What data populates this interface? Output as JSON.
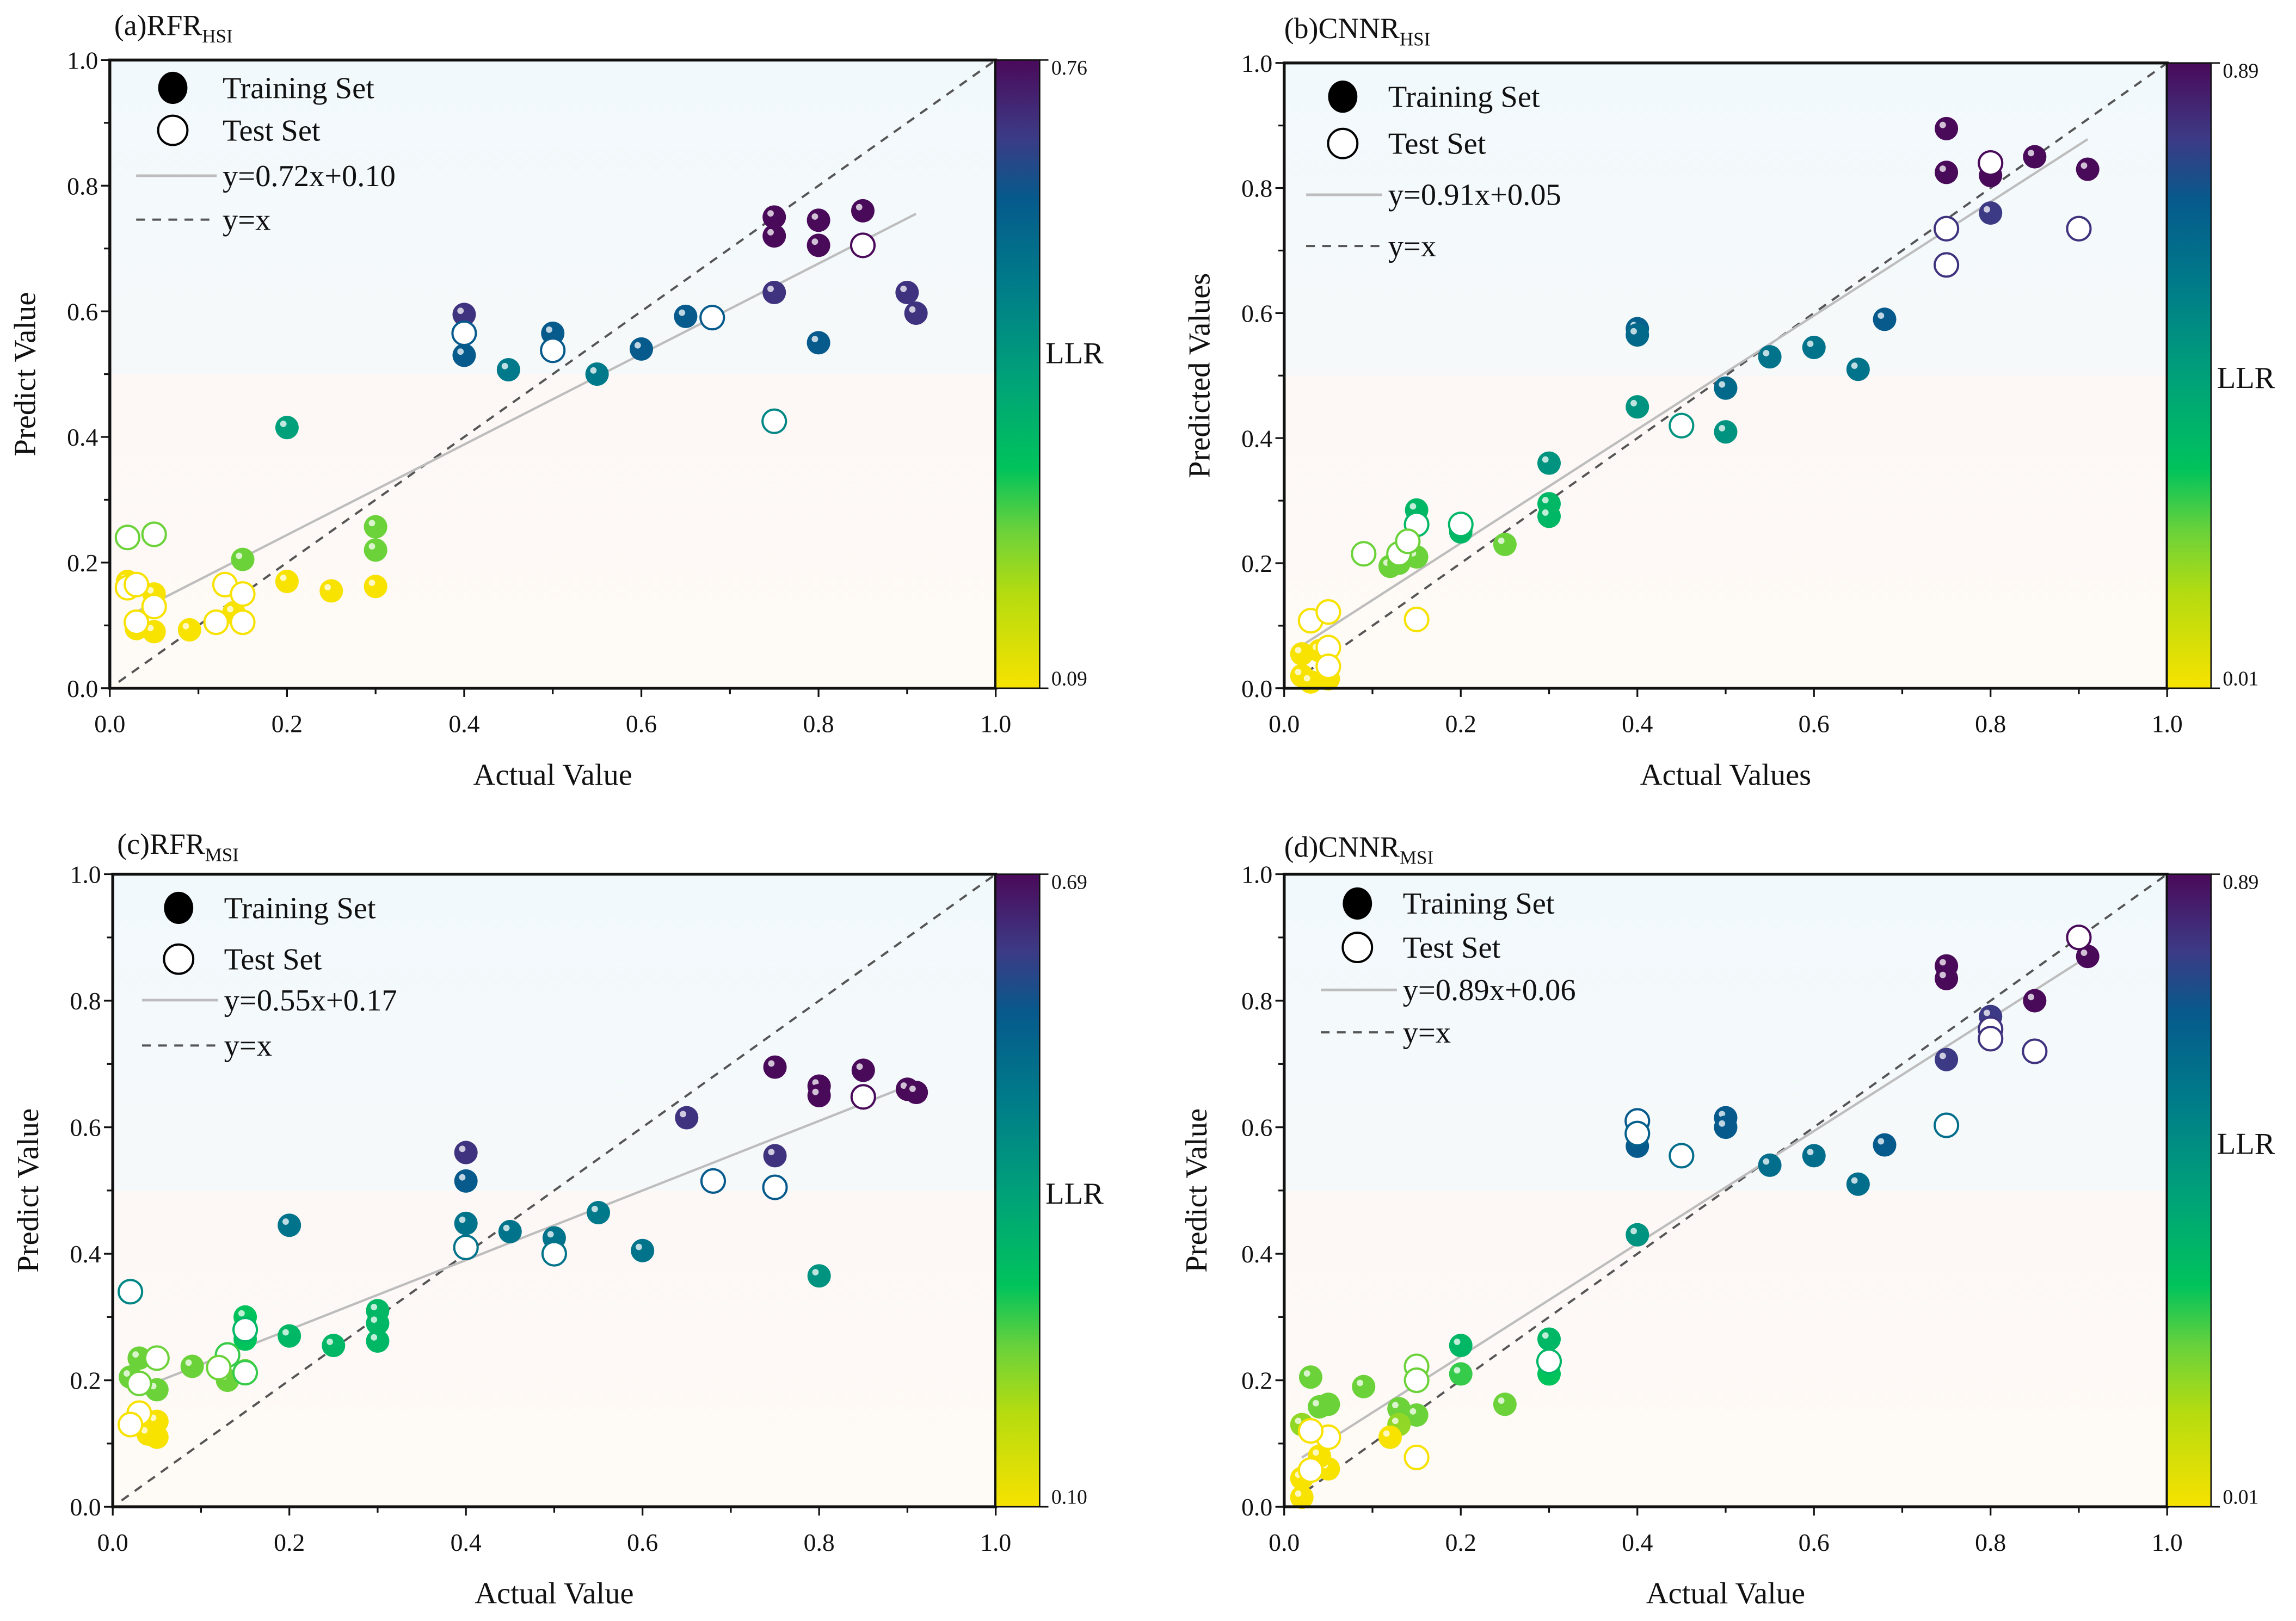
{
  "chart_data": [
    {
      "type": "scatter",
      "title": "(a)RFR",
      "title_sub": "HSI",
      "xlabel": "Actual Value",
      "ylabel": "Predict Value",
      "xlim": [
        0,
        1
      ],
      "ylim": [
        0,
        1
      ],
      "tick_labels": [
        "0.0",
        "0.2",
        "0.4",
        "0.6",
        "0.8",
        "1.0"
      ],
      "legend": {
        "training": "Training Set",
        "test": "Test Set",
        "fit": "y=0.72x+0.10",
        "identity": "y=x",
        "placement": "top-left"
      },
      "fit": {
        "slope": 0.72,
        "intercept": 0.1,
        "x_range": [
          0.02,
          0.91
        ]
      },
      "colorbar": {
        "label": "LLR",
        "min": "0.09",
        "max": "0.76"
      },
      "training": [
        [
          0.75,
          0.75,
          1
        ],
        [
          0.75,
          0.72,
          1
        ],
        [
          0.8,
          0.745,
          1
        ],
        [
          0.8,
          0.705,
          1
        ],
        [
          0.85,
          0.76,
          1
        ],
        [
          0.75,
          0.63,
          0.9
        ],
        [
          0.9,
          0.63,
          0.9
        ],
        [
          0.91,
          0.597,
          0.9
        ],
        [
          0.4,
          0.595,
          0.9
        ],
        [
          0.4,
          0.53,
          0.78
        ],
        [
          0.5,
          0.565,
          0.78
        ],
        [
          0.65,
          0.592,
          0.78
        ],
        [
          0.6,
          0.54,
          0.78
        ],
        [
          0.8,
          0.55,
          0.78
        ],
        [
          0.45,
          0.507,
          0.65
        ],
        [
          0.55,
          0.5,
          0.65
        ],
        [
          0.2,
          0.415,
          0.5
        ],
        [
          0.3,
          0.257,
          0.25
        ],
        [
          0.3,
          0.22,
          0.25
        ],
        [
          0.15,
          0.205,
          0.25
        ],
        [
          0.2,
          0.17,
          0
        ],
        [
          0.25,
          0.155,
          0
        ],
        [
          0.3,
          0.162,
          0
        ],
        [
          0.09,
          0.093,
          0
        ],
        [
          0.05,
          0.15,
          0
        ],
        [
          0.03,
          0.095,
          0
        ],
        [
          0.05,
          0.09,
          0
        ],
        [
          0.02,
          0.17,
          0
        ],
        [
          0.14,
          0.12,
          0
        ]
      ],
      "test": [
        [
          0.4,
          0.565,
          0.78
        ],
        [
          0.5,
          0.538,
          0.78
        ],
        [
          0.68,
          0.59,
          0.78
        ],
        [
          0.85,
          0.705,
          1
        ],
        [
          0.75,
          0.425,
          0.6
        ],
        [
          0.02,
          0.24,
          0.25
        ],
        [
          0.05,
          0.245,
          0.25
        ],
        [
          0.02,
          0.16,
          0
        ],
        [
          0.03,
          0.165,
          0
        ],
        [
          0.05,
          0.13,
          0
        ],
        [
          0.03,
          0.105,
          0
        ],
        [
          0.12,
          0.105,
          0
        ],
        [
          0.13,
          0.165,
          0
        ],
        [
          0.15,
          0.15,
          0
        ],
        [
          0.15,
          0.105,
          0
        ]
      ]
    },
    {
      "type": "scatter",
      "title": "(b)CNNR",
      "title_sub": "HSI",
      "xlabel": "Actual Values",
      "ylabel": "Predicted Values",
      "xlim": [
        0,
        1
      ],
      "ylim": [
        0,
        1
      ],
      "tick_labels": [
        "0.0",
        "0.2",
        "0.4",
        "0.6",
        "0.8",
        "1.0"
      ],
      "legend": {
        "training": "Training Set",
        "test": "Test Set",
        "fit": "y=0.91x+0.05",
        "identity": "y=x",
        "placement": "top-left"
      },
      "fit": {
        "slope": 0.91,
        "intercept": 0.05,
        "x_range": [
          0.02,
          0.91
        ]
      },
      "colorbar": {
        "label": "LLR",
        "min": "0.01",
        "max": "0.89"
      },
      "training": [
        [
          0.75,
          0.895,
          1
        ],
        [
          0.75,
          0.825,
          1
        ],
        [
          0.8,
          0.82,
          1
        ],
        [
          0.85,
          0.85,
          1
        ],
        [
          0.91,
          0.83,
          1
        ],
        [
          0.8,
          0.76,
          0.88
        ],
        [
          0.68,
          0.59,
          0.78
        ],
        [
          0.4,
          0.575,
          0.75
        ],
        [
          0.4,
          0.565,
          0.72
        ],
        [
          0.55,
          0.53,
          0.68
        ],
        [
          0.6,
          0.545,
          0.68
        ],
        [
          0.65,
          0.51,
          0.68
        ],
        [
          0.5,
          0.48,
          0.72
        ],
        [
          0.4,
          0.45,
          0.55
        ],
        [
          0.5,
          0.41,
          0.55
        ],
        [
          0.3,
          0.36,
          0.55
        ],
        [
          0.3,
          0.295,
          0.4
        ],
        [
          0.3,
          0.275,
          0.4
        ],
        [
          0.15,
          0.285,
          0.4
        ],
        [
          0.2,
          0.25,
          0.4
        ],
        [
          0.25,
          0.23,
          0.25
        ],
        [
          0.15,
          0.21,
          0.25
        ],
        [
          0.12,
          0.195,
          0.25
        ],
        [
          0.13,
          0.2,
          0.25
        ],
        [
          0.02,
          0.055,
          0
        ],
        [
          0.02,
          0.02,
          0
        ],
        [
          0.03,
          0.01,
          0
        ],
        [
          0.05,
          0.015,
          0
        ],
        [
          0.04,
          0.06,
          0
        ]
      ],
      "test": [
        [
          0.8,
          0.84,
          1
        ],
        [
          0.75,
          0.735,
          0.9
        ],
        [
          0.75,
          0.677,
          0.9
        ],
        [
          0.9,
          0.735,
          0.9
        ],
        [
          0.45,
          0.42,
          0.55
        ],
        [
          0.15,
          0.262,
          0.4
        ],
        [
          0.2,
          0.262,
          0.4
        ],
        [
          0.09,
          0.215,
          0.25
        ],
        [
          0.13,
          0.215,
          0.25
        ],
        [
          0.14,
          0.235,
          0.25
        ],
        [
          0.15,
          0.11,
          0
        ],
        [
          0.03,
          0.108,
          0
        ],
        [
          0.05,
          0.122,
          0
        ],
        [
          0.05,
          0.065,
          0
        ],
        [
          0.05,
          0.035,
          0
        ]
      ]
    },
    {
      "type": "scatter",
      "title": "(c)RFR",
      "title_sub": "MSI",
      "xlabel": "Actual Value",
      "ylabel": "Predict Value",
      "xlim": [
        0,
        1
      ],
      "ylim": [
        0,
        1
      ],
      "tick_labels": [
        "0.0",
        "0.2",
        "0.4",
        "0.6",
        "0.8",
        "1.0"
      ],
      "legend": {
        "training": "Training Set",
        "test": "Test Set",
        "fit": "y=0.55x+0.17",
        "identity": "y=x",
        "placement": "top-left"
      },
      "fit": {
        "slope": 0.55,
        "intercept": 0.17,
        "x_range": [
          0.02,
          0.91
        ]
      },
      "colorbar": {
        "label": "LLR",
        "min": "0.10",
        "max": "0.69"
      },
      "training": [
        [
          0.75,
          0.695,
          1
        ],
        [
          0.8,
          0.665,
          1
        ],
        [
          0.8,
          0.65,
          1
        ],
        [
          0.85,
          0.69,
          1
        ],
        [
          0.9,
          0.66,
          1
        ],
        [
          0.91,
          0.655,
          1
        ],
        [
          0.65,
          0.615,
          0.9
        ],
        [
          0.75,
          0.555,
          0.9
        ],
        [
          0.4,
          0.56,
          0.9
        ],
        [
          0.4,
          0.515,
          0.78
        ],
        [
          0.2,
          0.445,
          0.68
        ],
        [
          0.4,
          0.448,
          0.68
        ],
        [
          0.45,
          0.435,
          0.68
        ],
        [
          0.5,
          0.425,
          0.68
        ],
        [
          0.55,
          0.465,
          0.65
        ],
        [
          0.6,
          0.405,
          0.68
        ],
        [
          0.8,
          0.365,
          0.55
        ],
        [
          0.3,
          0.31,
          0.4
        ],
        [
          0.3,
          0.29,
          0.4
        ],
        [
          0.3,
          0.262,
          0.4
        ],
        [
          0.25,
          0.255,
          0.4
        ],
        [
          0.2,
          0.27,
          0.4
        ],
        [
          0.15,
          0.3,
          0.35
        ],
        [
          0.15,
          0.265,
          0.35
        ],
        [
          0.15,
          0.215,
          0.25
        ],
        [
          0.09,
          0.222,
          0.25
        ],
        [
          0.13,
          0.2,
          0.25
        ],
        [
          0.03,
          0.235,
          0.25
        ],
        [
          0.02,
          0.205,
          0.25
        ],
        [
          0.05,
          0.185,
          0.25
        ],
        [
          0.05,
          0.135,
          0
        ],
        [
          0.05,
          0.11,
          0
        ],
        [
          0.04,
          0.115,
          0
        ]
      ],
      "test": [
        [
          0.85,
          0.648,
          1
        ],
        [
          0.68,
          0.515,
          0.78
        ],
        [
          0.75,
          0.505,
          0.78
        ],
        [
          0.4,
          0.41,
          0.68
        ],
        [
          0.5,
          0.4,
          0.68
        ],
        [
          0.02,
          0.34,
          0.6
        ],
        [
          0.15,
          0.28,
          0.4
        ],
        [
          0.13,
          0.24,
          0.3
        ],
        [
          0.12,
          0.22,
          0.25
        ],
        [
          0.15,
          0.212,
          0.3
        ],
        [
          0.05,
          0.235,
          0.25
        ],
        [
          0.03,
          0.195,
          0.25
        ],
        [
          0.03,
          0.148,
          0
        ],
        [
          0.02,
          0.13,
          0
        ]
      ]
    },
    {
      "type": "scatter",
      "title": "(d)CNNR",
      "title_sub": "MSI",
      "xlabel": "Actual Value",
      "ylabel": "Predict Value",
      "xlim": [
        0,
        1
      ],
      "ylim": [
        0,
        1
      ],
      "tick_labels": [
        "0.0",
        "0.2",
        "0.4",
        "0.6",
        "0.8",
        "1.0"
      ],
      "legend": {
        "training": "Training Set",
        "test": "Test Set",
        "fit": "y=0.89x+0.06",
        "identity": "y=x",
        "placement": "top-left"
      },
      "fit": {
        "slope": 0.89,
        "intercept": 0.06,
        "x_range": [
          0.02,
          0.91
        ]
      },
      "colorbar": {
        "label": "LLR",
        "min": "0.01",
        "max": "0.89"
      },
      "training": [
        [
          0.75,
          0.855,
          1
        ],
        [
          0.75,
          0.835,
          1
        ],
        [
          0.91,
          0.87,
          1
        ],
        [
          0.85,
          0.8,
          1
        ],
        [
          0.8,
          0.775,
          0.88
        ],
        [
          0.75,
          0.707,
          0.88
        ],
        [
          0.5,
          0.615,
          0.78
        ],
        [
          0.5,
          0.6,
          0.78
        ],
        [
          0.4,
          0.57,
          0.78
        ],
        [
          0.68,
          0.572,
          0.78
        ],
        [
          0.6,
          0.555,
          0.7
        ],
        [
          0.55,
          0.54,
          0.7
        ],
        [
          0.65,
          0.51,
          0.7
        ],
        [
          0.4,
          0.43,
          0.55
        ],
        [
          0.3,
          0.265,
          0.4
        ],
        [
          0.2,
          0.255,
          0.4
        ],
        [
          0.3,
          0.21,
          0.35
        ],
        [
          0.2,
          0.21,
          0.3
        ],
        [
          0.25,
          0.162,
          0.25
        ],
        [
          0.09,
          0.19,
          0.25
        ],
        [
          0.03,
          0.205,
          0.25
        ],
        [
          0.05,
          0.162,
          0.25
        ],
        [
          0.04,
          0.158,
          0.25
        ],
        [
          0.13,
          0.155,
          0.25
        ],
        [
          0.15,
          0.145,
          0.25
        ],
        [
          0.13,
          0.13,
          0.2
        ],
        [
          0.02,
          0.13,
          0.2
        ],
        [
          0.12,
          0.11,
          0
        ],
        [
          0.05,
          0.06,
          0
        ],
        [
          0.04,
          0.08,
          0
        ],
        [
          0.02,
          0.045,
          0
        ],
        [
          0.02,
          0.015,
          0
        ]
      ],
      "test": [
        [
          0.9,
          0.9,
          1
        ],
        [
          0.8,
          0.755,
          0.9
        ],
        [
          0.8,
          0.74,
          0.9
        ],
        [
          0.85,
          0.72,
          0.9
        ],
        [
          0.4,
          0.61,
          0.78
        ],
        [
          0.4,
          0.59,
          0.75
        ],
        [
          0.45,
          0.555,
          0.7
        ],
        [
          0.75,
          0.603,
          0.7
        ],
        [
          0.3,
          0.23,
          0.4
        ],
        [
          0.15,
          0.222,
          0.25
        ],
        [
          0.15,
          0.2,
          0.25
        ],
        [
          0.15,
          0.078,
          0
        ],
        [
          0.05,
          0.11,
          0
        ],
        [
          0.03,
          0.12,
          0
        ],
        [
          0.03,
          0.058,
          0
        ]
      ]
    }
  ]
}
